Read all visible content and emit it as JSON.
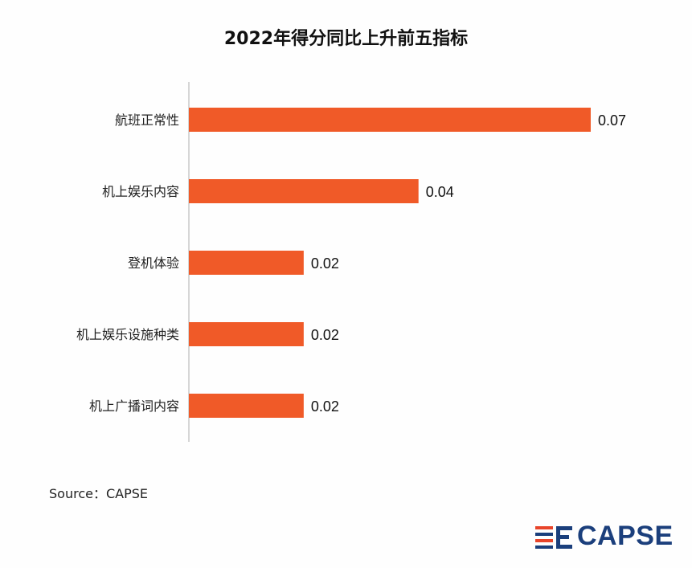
{
  "chart_data": {
    "type": "bar",
    "orientation": "horizontal",
    "title": "2022年得分同比上升前五指标",
    "categories": [
      "航班正常性",
      "机上娱乐内容",
      "登机体验",
      "机上娱乐设施种类",
      "机上广播词内容"
    ],
    "values": [
      0.07,
      0.04,
      0.02,
      0.02,
      0.02
    ],
    "value_labels": [
      "0.07",
      "0.04",
      "0.02",
      "0.02",
      "0.02"
    ],
    "xlim": [
      0,
      0.07
    ],
    "grid": false,
    "bar_color": "#f05a28"
  },
  "source": "Source：CAPSE",
  "logo": {
    "text": "CAPSE",
    "icon": "capse-flag-logo"
  }
}
